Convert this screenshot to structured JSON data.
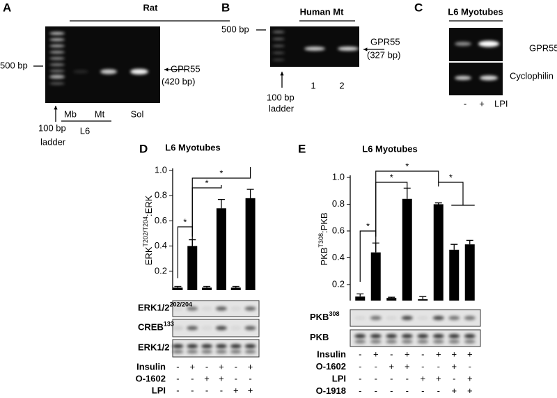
{
  "panels": {
    "a": {
      "letter": "A",
      "group": "Rat",
      "marker": "500 bp",
      "band": "GPR55",
      "size": "(420 bp)",
      "ladder": [
        "100 bp",
        "ladder"
      ],
      "lanes": [
        "Mb",
        "Mt",
        "Sol"
      ],
      "sub": "L6"
    },
    "b": {
      "letter": "B",
      "group": "Human Mt",
      "marker": "500 bp",
      "band": "GPR55",
      "size": "(327 bp)",
      "ladder": [
        "100 bp",
        "ladder"
      ],
      "lanes": [
        "1",
        "2"
      ]
    },
    "c": {
      "letter": "C",
      "group": "L6 Myotubes",
      "rows": [
        "GPR55",
        "Cyclophilin"
      ],
      "signs": [
        "-",
        "+"
      ],
      "treatment": "LPI"
    },
    "d": {
      "letter": "D",
      "strips": [
        {
          "label": "ERK1/2",
          "sup": "202/204"
        },
        {
          "label": "CREB",
          "sup": "133"
        },
        {
          "label": "ERK1/2"
        }
      ],
      "conditions": [
        {
          "name": "Insulin",
          "signs": [
            "-",
            "+",
            "-",
            "+",
            "-",
            "+"
          ]
        },
        {
          "name": "O-1602",
          "signs": [
            "-",
            "-",
            "+",
            "+",
            "-",
            "-"
          ]
        },
        {
          "name": "LPI",
          "signs": [
            "-",
            "-",
            "-",
            "-",
            "+",
            "+"
          ]
        }
      ]
    },
    "e": {
      "letter": "E",
      "strips": [
        {
          "label": "PKB",
          "sup": "308"
        },
        {
          "label": "PKB"
        }
      ],
      "conditions": [
        {
          "name": "Insulin",
          "signs": [
            "-",
            "+",
            "-",
            "+",
            "-",
            "+",
            "+",
            "+"
          ]
        },
        {
          "name": "O-1602",
          "signs": [
            "-",
            "-",
            "+",
            "+",
            "-",
            "-",
            "+",
            "-"
          ]
        },
        {
          "name": "LPI",
          "signs": [
            "-",
            "-",
            "-",
            "-",
            "+",
            "+",
            "-",
            "+"
          ]
        },
        {
          "name": "O-1918",
          "signs": [
            "-",
            "-",
            "-",
            "-",
            "-",
            "-",
            "+",
            "+"
          ]
        }
      ]
    }
  },
  "chart_data": [
    {
      "type": "bar",
      "title": "L6 Myotubes",
      "y_label": [
        "ERK",
        "T202/T204",
        ":ERK"
      ],
      "categories": [
        null,
        null,
        null,
        null,
        null,
        null
      ],
      "values": [
        0.07,
        0.4,
        0.07,
        0.7,
        0.07,
        0.78
      ],
      "errors": [
        0.01,
        0.05,
        0.01,
        0.07,
        0.01,
        0.07
      ],
      "color": "#000000",
      "ylim": [
        0.05,
        1.0
      ],
      "yticks": [
        0.2,
        0.4,
        0.6,
        0.8,
        {
          "value": 1.0,
          "label": "1.0"
        }
      ],
      "annotations": [
        "*",
        "*",
        "*"
      ]
    },
    {
      "type": "bar",
      "title": "L6 Myotubes",
      "y_label": [
        "PKB",
        "T308",
        ":PKB"
      ],
      "categories": [
        null,
        null,
        null,
        null,
        null,
        null,
        null,
        null
      ],
      "values": [
        0.11,
        0.44,
        0.1,
        0.84,
        0.09,
        0.8,
        0.46,
        0.5
      ],
      "errors": [
        0.02,
        0.07,
        0.005,
        0.08,
        0.02,
        0.01,
        0.04,
        0.03
      ],
      "color": "#000000",
      "ylim": [
        0.08,
        1.0
      ],
      "yticks": [
        0.2,
        0.4,
        0.6,
        0.8,
        {
          "value": 1.0,
          "label": "1.0"
        }
      ],
      "annotations": [
        "*",
        "*",
        "*",
        "*"
      ]
    }
  ]
}
